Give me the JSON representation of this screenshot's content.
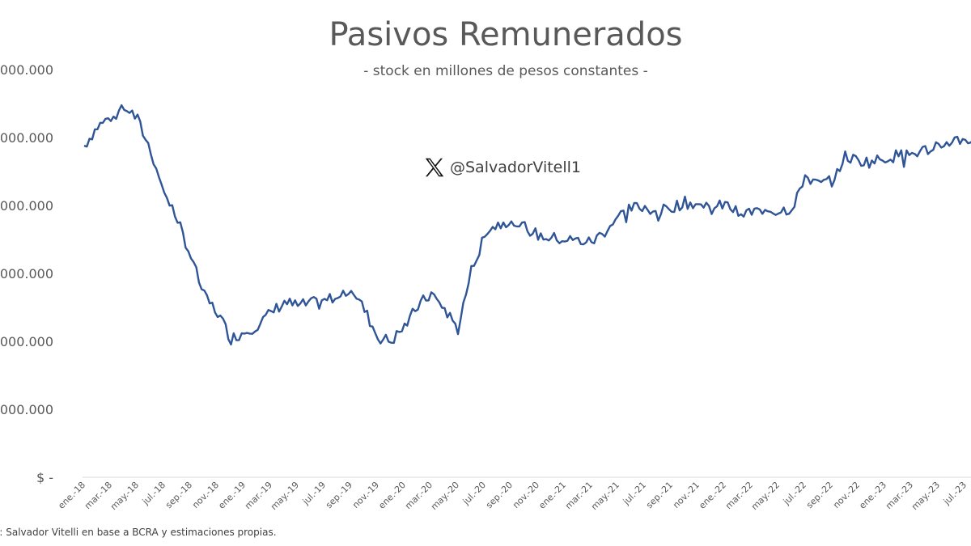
{
  "chart_title": "Pasivos Remunerados",
  "chart_subtitle": "- stock en millones de pesos constantes -",
  "watermark": "@SalvadorVitell1",
  "source_note": "e: Salvador Vitelli en base a BCRA y estimaciones propias.",
  "colors": {
    "line": "#2F5597",
    "text": "#595959",
    "axis": "#D9D9D9"
  },
  "chart_data": {
    "type": "line",
    "title": "Pasivos Remunerados",
    "subtitle": "- stock en millones de pesos constantes -",
    "xlabel": "",
    "ylabel": "",
    "grid": false,
    "y_tick_labels": [
      "$ -",
      "5.000.000",
      "0.000.000",
      "5.000.000",
      "0.000.000",
      "5.000.000",
      "0.000.000"
    ],
    "y_ticks": [
      0,
      5000000,
      10000000,
      15000000,
      20000000,
      25000000,
      30000000
    ],
    "ylim": [
      0,
      30000000
    ],
    "x_tick_labels": [
      "ene.-18",
      "mar.-18",
      "may.-18",
      "jul.-18",
      "sep.-18",
      "nov.-18",
      "ene.-19",
      "mar.-19",
      "may.-19",
      "jul.-19",
      "sep.-19",
      "nov.-19",
      "ene.-20",
      "mar.-20",
      "may.-20",
      "jul.-20",
      "sep.-20",
      "nov.-20",
      "ene.-21",
      "mar.-21",
      "may.-21",
      "jul.-21",
      "sep.-21",
      "nov.-21",
      "ene.-22",
      "mar.-22",
      "may.-22",
      "jul.-22",
      "sep.-22",
      "nov.-22",
      "ene.-23",
      "mar.-23",
      "may.-23",
      "jul.-23"
    ],
    "series": [
      {
        "values_by_month": [
          [
            "2018-01",
            24400000
          ],
          [
            "2018-02",
            25800000
          ],
          [
            "2018-03",
            26500000
          ],
          [
            "2018-04",
            27400000
          ],
          [
            "2018-05",
            26300000
          ],
          [
            "2018-06",
            24000000
          ],
          [
            "2018-07",
            21000000
          ],
          [
            "2018-08",
            19000000
          ],
          [
            "2018-09",
            16200000
          ],
          [
            "2018-10",
            13300000
          ],
          [
            "2018-11",
            12100000
          ],
          [
            "2018-12",
            10200000
          ],
          [
            "2019-01",
            10700000
          ],
          [
            "2019-02",
            11200000
          ],
          [
            "2019-03",
            12100000
          ],
          [
            "2019-04",
            12900000
          ],
          [
            "2019-05",
            12600000
          ],
          [
            "2019-06",
            12800000
          ],
          [
            "2019-07",
            12900000
          ],
          [
            "2019-08",
            13500000
          ],
          [
            "2019-09",
            14000000
          ],
          [
            "2019-10",
            12300000
          ],
          [
            "2019-11",
            10300000
          ],
          [
            "2019-12",
            10000000
          ],
          [
            "2020-01",
            11100000
          ],
          [
            "2020-02",
            12600000
          ],
          [
            "2020-03",
            13500000
          ],
          [
            "2020-04",
            12400000
          ],
          [
            "2020-05",
            10900000
          ],
          [
            "2020-06",
            15200000
          ],
          [
            "2020-07",
            18100000
          ],
          [
            "2020-08",
            18600000
          ],
          [
            "2020-09",
            19000000
          ],
          [
            "2020-10",
            18400000
          ],
          [
            "2020-11",
            17800000
          ],
          [
            "2020-12",
            17600000
          ],
          [
            "2021-01",
            17500000
          ],
          [
            "2021-02",
            17400000
          ],
          [
            "2021-03",
            17300000
          ],
          [
            "2021-04",
            18100000
          ],
          [
            "2021-05",
            19200000
          ],
          [
            "2021-06",
            19800000
          ],
          [
            "2021-07",
            19900000
          ],
          [
            "2021-08",
            19500000
          ],
          [
            "2021-09",
            19900000
          ],
          [
            "2021-10",
            20200000
          ],
          [
            "2021-11",
            20100000
          ],
          [
            "2021-12",
            19700000
          ],
          [
            "2022-01",
            20100000
          ],
          [
            "2022-02",
            19400000
          ],
          [
            "2022-03",
            19500000
          ],
          [
            "2022-04",
            19700000
          ],
          [
            "2022-05",
            19600000
          ],
          [
            "2022-06",
            19800000
          ],
          [
            "2022-07",
            22200000
          ],
          [
            "2022-08",
            21500000
          ],
          [
            "2022-09",
            21900000
          ],
          [
            "2022-10",
            23600000
          ],
          [
            "2022-11",
            23300000
          ],
          [
            "2022-12",
            23200000
          ],
          [
            "2023-01",
            23500000
          ],
          [
            "2023-02",
            23700000
          ],
          [
            "2023-03",
            23800000
          ],
          [
            "2023-04",
            24100000
          ],
          [
            "2023-05",
            24300000
          ],
          [
            "2023-06",
            24800000
          ],
          [
            "2023-07",
            24900000
          ],
          [
            "2023-08",
            24700000
          ]
        ]
      }
    ]
  }
}
